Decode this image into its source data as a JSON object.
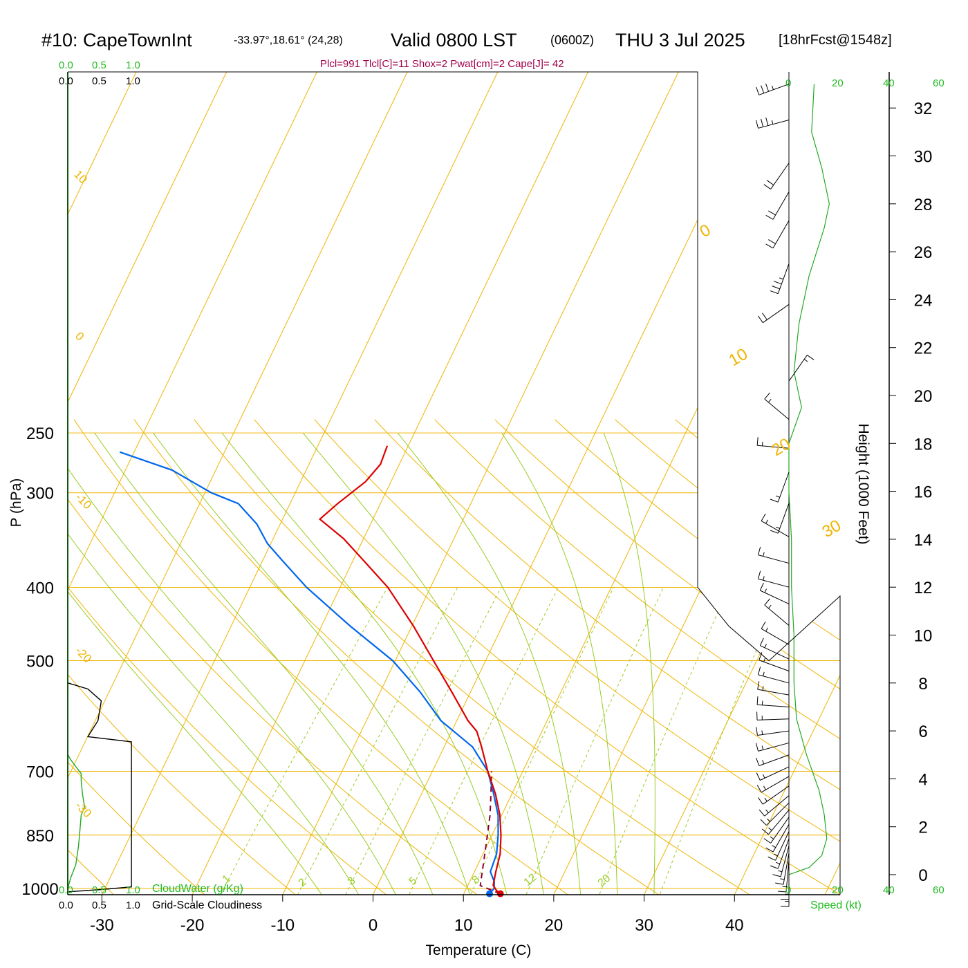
{
  "title": {
    "station": "#10: CapeTownInt",
    "coords": "-33.97°,18.61° (24,28)",
    "valid": "Valid 0800 LST",
    "zulu": "(0600Z)",
    "date": "THU 3 Jul 2025",
    "forecast": "[18hrFcst@1548z]"
  },
  "indices": "Plcl=991 Tlcl[C]=11 Shox=2 Pwat[cm]=2 Cape[J]= 42",
  "left_panel": {
    "cloudwater_ticks": [
      "0.0",
      "0.5",
      "1.0"
    ],
    "cloudiness_ticks": [
      "0.0",
      "0.5",
      "1.0"
    ],
    "cloudwater_label": "CloudWater (g/Kg)",
    "cloudiness_label": "Grid-Scale Cloudiness"
  },
  "wind_panel": {
    "speed_ticks": [
      "0",
      "20",
      "40",
      "60"
    ],
    "speed_label": "Speed (kt)"
  },
  "colors": {
    "temperature": "#dd0000",
    "dewpoint": "#0066ee",
    "parcel": "#880033",
    "isobar": "#f0b400",
    "isotherm": "#f0b400",
    "dry_adiabat": "#f0b400",
    "moist_adiabat": "#99cc22",
    "mixing_ratio": "#99cc22",
    "cloudwater": "#22aa22",
    "indices": "#a0004a",
    "label_green": "#22bb22",
    "frame": "#000000"
  },
  "chart_data": {
    "type": "skew-t",
    "xlabel": "Temperature (C)",
    "ylabel": "P (hPa)",
    "y2label": "Height (1000 Feet)",
    "pressure_ticks": [
      250,
      300,
      400,
      500,
      700,
      850,
      1000
    ],
    "temperature_ticks": [
      -30,
      -20,
      -10,
      0,
      10,
      20,
      30,
      40
    ],
    "height_ticks_kft": [
      0,
      2,
      4,
      6,
      8,
      10,
      12,
      14,
      16,
      18,
      20,
      22,
      24,
      26,
      28,
      30,
      32
    ],
    "isotherm_labels": [
      "10",
      "0",
      "-10",
      "-20",
      "-30",
      "0",
      "10",
      "20",
      "30"
    ],
    "mixing_ratio_labels": [
      "1",
      "2",
      "3",
      "5",
      "8",
      "12",
      "20"
    ],
    "temperature_profile": [
      {
        "p": 1016,
        "t": 14.0
      },
      {
        "p": 1005,
        "t": 13.2
      },
      {
        "p": 990,
        "t": 12.4
      },
      {
        "p": 950,
        "t": 11.4
      },
      {
        "p": 900,
        "t": 10.2
      },
      {
        "p": 850,
        "t": 8.5
      },
      {
        "p": 800,
        "t": 6.5
      },
      {
        "p": 750,
        "t": 4.0
      },
      {
        "p": 700,
        "t": 1.0
      },
      {
        "p": 650,
        "t": -2.0
      },
      {
        "p": 620,
        "t": -4.0
      },
      {
        "p": 600,
        "t": -6.0
      },
      {
        "p": 550,
        "t": -10.5
      },
      {
        "p": 500,
        "t": -15.5
      },
      {
        "p": 450,
        "t": -21.0
      },
      {
        "p": 400,
        "t": -27.5
      },
      {
        "p": 370,
        "t": -32.5
      },
      {
        "p": 345,
        "t": -37.0
      },
      {
        "p": 325,
        "t": -41.5
      },
      {
        "p": 310,
        "t": -41.0
      },
      {
        "p": 290,
        "t": -40.0
      },
      {
        "p": 275,
        "t": -40.0
      },
      {
        "p": 260,
        "t": -41.0
      }
    ],
    "dewpoint_profile": [
      {
        "p": 1016,
        "t": 12.8
      },
      {
        "p": 1000,
        "t": 12.8
      },
      {
        "p": 980,
        "t": 12.2
      },
      {
        "p": 950,
        "t": 10.8
      },
      {
        "p": 900,
        "t": 9.8
      },
      {
        "p": 850,
        "t": 8.2
      },
      {
        "p": 800,
        "t": 6.3
      },
      {
        "p": 750,
        "t": 3.8
      },
      {
        "p": 700,
        "t": 1.0
      },
      {
        "p": 650,
        "t": -3.0
      },
      {
        "p": 600,
        "t": -9.0
      },
      {
        "p": 550,
        "t": -14.0
      },
      {
        "p": 500,
        "t": -20.0
      },
      {
        "p": 450,
        "t": -28.0
      },
      {
        "p": 400,
        "t": -36.5
      },
      {
        "p": 370,
        "t": -41.5
      },
      {
        "p": 350,
        "t": -45.0
      },
      {
        "p": 330,
        "t": -48.0
      },
      {
        "p": 310,
        "t": -52.0
      },
      {
        "p": 300,
        "t": -56.0
      },
      {
        "p": 280,
        "t": -62.5
      },
      {
        "p": 265,
        "t": -70.0
      }
    ],
    "parcel_profile": [
      {
        "p": 1016,
        "t": 14.0
      },
      {
        "p": 991,
        "t": 11.0
      },
      {
        "p": 950,
        "t": 9.9
      },
      {
        "p": 900,
        "t": 8.5
      },
      {
        "p": 850,
        "t": 7.0
      },
      {
        "p": 800,
        "t": 5.4
      },
      {
        "p": 750,
        "t": 3.5
      },
      {
        "p": 700,
        "t": 1.4
      }
    ],
    "cloudwater_profile": [
      {
        "p": 1010,
        "v": 0.0
      },
      {
        "p": 1000,
        "v": 0.0
      },
      {
        "p": 970,
        "v": 0.04
      },
      {
        "p": 930,
        "v": 0.12
      },
      {
        "p": 880,
        "v": 0.16
      },
      {
        "p": 840,
        "v": 0.18
      },
      {
        "p": 800,
        "v": 0.2
      },
      {
        "p": 780,
        "v": 0.25
      },
      {
        "p": 750,
        "v": 0.22
      },
      {
        "p": 720,
        "v": 0.2
      },
      {
        "p": 705,
        "v": 0.2
      },
      {
        "p": 690,
        "v": 0.12
      },
      {
        "p": 675,
        "v": 0.04
      },
      {
        "p": 665,
        "v": 0.0
      }
    ],
    "cloudiness_profile": [
      {
        "p": 1010,
        "v": 0.0
      },
      {
        "p": 1003,
        "v": 0.5
      },
      {
        "p": 995,
        "v": 0.95
      },
      {
        "p": 880,
        "v": 0.95
      },
      {
        "p": 800,
        "v": 0.95
      },
      {
        "p": 700,
        "v": 0.95
      },
      {
        "p": 640,
        "v": 0.95
      },
      {
        "p": 630,
        "v": 0.3
      },
      {
        "p": 600,
        "v": 0.45
      },
      {
        "p": 565,
        "v": 0.5
      },
      {
        "p": 545,
        "v": 0.3
      },
      {
        "p": 535,
        "v": 0.0
      }
    ],
    "wind_speed_profile": [
      {
        "h": 0.0,
        "s": 0
      },
      {
        "h": 0.3,
        "s": 8
      },
      {
        "h": 0.8,
        "s": 13
      },
      {
        "h": 1.5,
        "s": 15
      },
      {
        "h": 2.5,
        "s": 14
      },
      {
        "h": 3.5,
        "s": 12
      },
      {
        "h": 5.0,
        "s": 7
      },
      {
        "h": 6.5,
        "s": 3
      },
      {
        "h": 8.0,
        "s": 2
      },
      {
        "h": 10.0,
        "s": 2
      },
      {
        "h": 12.0,
        "s": 1
      },
      {
        "h": 14.0,
        "s": 1
      },
      {
        "h": 16.0,
        "s": 0
      },
      {
        "h": 18.0,
        "s": 0
      },
      {
        "h": 19.5,
        "s": 5
      },
      {
        "h": 21.0,
        "s": 2
      },
      {
        "h": 23.0,
        "s": 4
      },
      {
        "h": 25.0,
        "s": 8
      },
      {
        "h": 27.0,
        "s": 14
      },
      {
        "h": 28.0,
        "s": 16
      },
      {
        "h": 29.5,
        "s": 13
      },
      {
        "h": 31.0,
        "s": 9
      },
      {
        "h": 33.0,
        "s": 10
      }
    ],
    "wind_barbs": [
      {
        "h": 0.0,
        "dir": 180,
        "spd": 5
      },
      {
        "h": 0.3,
        "dir": 180,
        "spd": 5
      },
      {
        "h": 0.6,
        "dir": 185,
        "spd": 5
      },
      {
        "h": 0.9,
        "dir": 190,
        "spd": 5
      },
      {
        "h": 1.2,
        "dir": 195,
        "spd": 5
      },
      {
        "h": 1.5,
        "dir": 200,
        "spd": 5
      },
      {
        "h": 1.8,
        "dir": 205,
        "spd": 5
      },
      {
        "h": 2.1,
        "dir": 210,
        "spd": 5
      },
      {
        "h": 2.4,
        "dir": 215,
        "spd": 5
      },
      {
        "h": 2.7,
        "dir": 220,
        "spd": 5
      },
      {
        "h": 3.0,
        "dir": 225,
        "spd": 5
      },
      {
        "h": 3.3,
        "dir": 230,
        "spd": 5
      },
      {
        "h": 3.7,
        "dir": 235,
        "spd": 5
      },
      {
        "h": 4.1,
        "dir": 240,
        "spd": 5
      },
      {
        "h": 4.5,
        "dir": 245,
        "spd": 5
      },
      {
        "h": 5.0,
        "dir": 250,
        "spd": 5
      },
      {
        "h": 5.5,
        "dir": 255,
        "spd": 5
      },
      {
        "h": 6.0,
        "dir": 262,
        "spd": 5
      },
      {
        "h": 6.5,
        "dir": 268,
        "spd": 5
      },
      {
        "h": 7.0,
        "dir": 274,
        "spd": 5
      },
      {
        "h": 7.5,
        "dir": 280,
        "spd": 5
      },
      {
        "h": 8.0,
        "dir": 285,
        "spd": 5
      },
      {
        "h": 8.5,
        "dir": 290,
        "spd": 5
      },
      {
        "h": 9.0,
        "dir": 295,
        "spd": 5
      },
      {
        "h": 9.6,
        "dir": 300,
        "spd": 5
      },
      {
        "h": 10.4,
        "dir": 310,
        "spd": 5
      },
      {
        "h": 11.3,
        "dir": 295,
        "spd": 5
      },
      {
        "h": 12.0,
        "dir": 285,
        "spd": 5
      },
      {
        "h": 13.0,
        "dir": 285,
        "spd": 5
      },
      {
        "h": 14.1,
        "dir": 300,
        "spd": 5
      },
      {
        "h": 15.5,
        "dir": 200,
        "spd": 5
      },
      {
        "h": 16.8,
        "dir": 200,
        "spd": 5
      },
      {
        "h": 17.8,
        "dir": 275,
        "spd": 5
      },
      {
        "h": 19.0,
        "dir": 310,
        "spd": 5
      },
      {
        "h": 20.6,
        "dir": 35,
        "spd": 5
      },
      {
        "h": 23.8,
        "dir": 235,
        "spd": 20
      },
      {
        "h": 25.5,
        "dir": 200,
        "spd": 25
      },
      {
        "h": 27.3,
        "dir": 210,
        "spd": 20
      },
      {
        "h": 28.5,
        "dir": 210,
        "spd": 20
      },
      {
        "h": 29.7,
        "dir": 215,
        "spd": 20
      },
      {
        "h": 31.5,
        "dir": 255,
        "spd": 25
      },
      {
        "h": 33.0,
        "dir": 250,
        "spd": 25
      }
    ]
  }
}
